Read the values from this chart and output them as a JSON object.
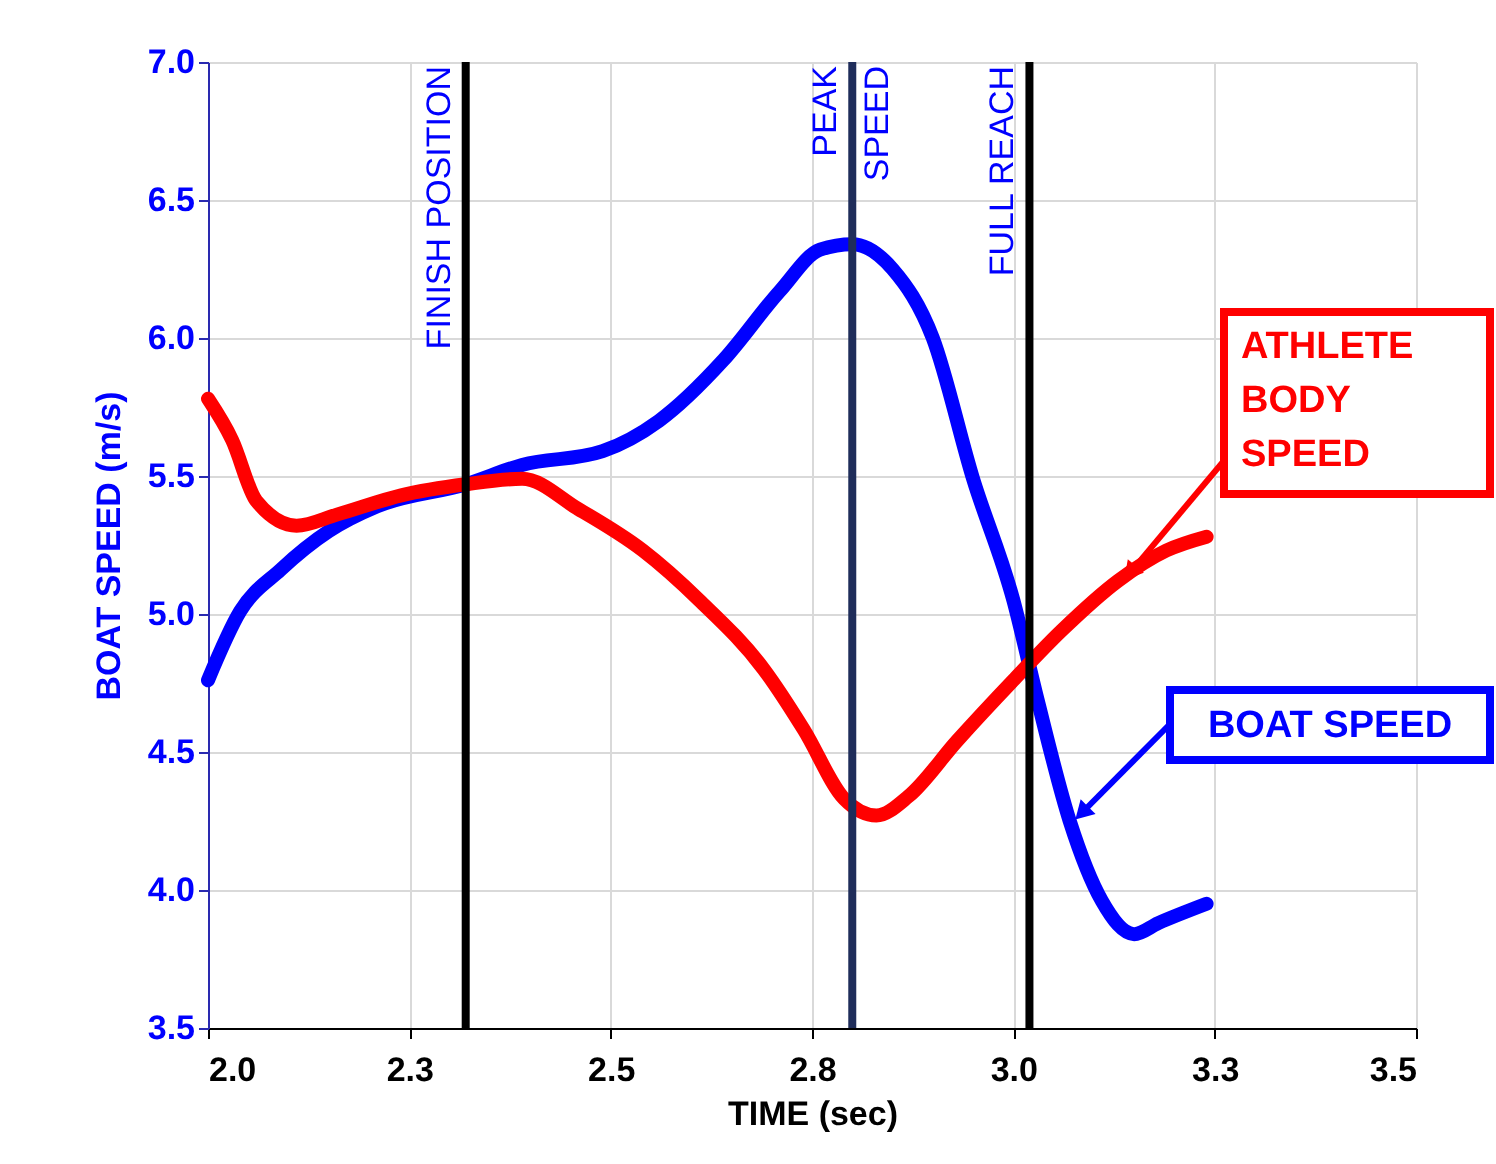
{
  "chart_data": {
    "type": "line",
    "xlabel": "TIME (sec)",
    "ylabel": "BOAT SPEED  (m/s)",
    "xlim": [
      2.0,
      3.5
    ],
    "ylim": [
      3.5,
      7.0
    ],
    "xticks": [
      {
        "value": 2,
        "label": "2.0"
      },
      {
        "value": 2.25,
        "label": "2.3"
      },
      2.5,
      {
        "value": 2.75,
        "label": "2.8"
      },
      {
        "value": 3,
        "label": "3.0"
      },
      {
        "value": 3.25,
        "label": "3.3"
      },
      3.5
    ],
    "yticks": [
      3.5,
      {
        "value": 4,
        "label": "4.0"
      },
      4.5,
      {
        "value": 5,
        "label": "5.0"
      },
      5.5,
      {
        "value": 6,
        "label": "6.0"
      },
      6.5,
      {
        "value": 7,
        "label": "7.0"
      }
    ],
    "grid": true,
    "legend": false,
    "marker": "none",
    "line_style": "solid",
    "series": [
      {
        "name": "BOAT SPEED",
        "color": "#0000ff",
        "x": [
          2.0,
          2.04,
          2.09,
          2.15,
          2.21,
          2.32,
          2.39,
          2.49,
          2.56,
          2.64,
          2.71,
          2.76,
          2.8,
          2.85,
          2.9,
          2.95,
          3.0,
          3.03,
          3.07,
          3.11,
          3.15,
          3.18,
          3.24
        ],
        "values": [
          4.76,
          5.01,
          5.16,
          5.3,
          5.39,
          5.47,
          5.54,
          5.59,
          5.7,
          5.92,
          6.17,
          6.32,
          6.34,
          6.25,
          6.0,
          5.49,
          5.05,
          4.69,
          4.25,
          3.96,
          3.84,
          3.88,
          3.95
        ]
      },
      {
        "name": "ATHLETE BODY SPEED",
        "color": "#ff0000",
        "x": [
          2.0,
          2.03,
          2.06,
          2.11,
          2.16,
          2.24,
          2.32,
          2.39,
          2.46,
          2.54,
          2.61,
          2.69,
          2.74,
          2.79,
          2.83,
          2.87,
          2.93,
          3.0,
          3.06,
          3.13,
          3.19,
          3.24
        ],
        "values": [
          5.78,
          5.63,
          5.41,
          5.32,
          5.36,
          5.43,
          5.47,
          5.49,
          5.38,
          5.23,
          5.05,
          4.8,
          4.58,
          4.33,
          4.27,
          4.34,
          4.54,
          4.76,
          4.94,
          5.12,
          5.23,
          5.28
        ]
      }
    ],
    "ref_lines": [
      {
        "axis": "x",
        "value": 2.32,
        "label": "FINISH POSITION",
        "color": "#000000"
      },
      {
        "axis": "x",
        "value": 2.8,
        "label": "PEAK SPEED",
        "color": "#1f2d5a"
      },
      {
        "axis": "x",
        "value": 3.02,
        "label": "FULL REACH",
        "color": "#000000"
      }
    ]
  }
}
